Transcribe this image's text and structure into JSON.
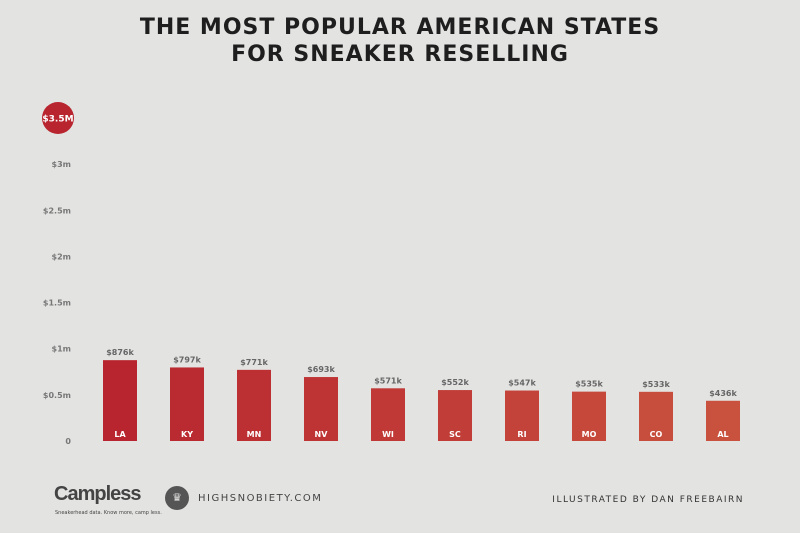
{
  "title_lines": [
    "THE MOST POPULAR AMERICAN STATES",
    "FOR SNEAKER RESELLING"
  ],
  "chart_data": {
    "type": "bar",
    "title": "THE MOST POPULAR AMERICAN STATES FOR SNEAKER RESELLING",
    "categories": [
      "LA",
      "KY",
      "MN",
      "NV",
      "WI",
      "SC",
      "RI",
      "MO",
      "CO",
      "AL"
    ],
    "values": [
      876000,
      797000,
      771000,
      693000,
      571000,
      552000,
      547000,
      535000,
      533000,
      436000
    ],
    "data_labels": [
      "$876k",
      "$797k",
      "$771k",
      "$693k",
      "$571k",
      "$552k",
      "$547k",
      "$535k",
      "$533k",
      "$436k"
    ],
    "ylim": [
      0,
      3500000
    ],
    "yticks": [
      0,
      500000,
      1000000,
      1500000,
      2000000,
      2500000,
      3000000
    ],
    "ytick_labels": [
      "0",
      "$0.5m",
      "$1m",
      "$1.5m",
      "$2m",
      "$2.5m",
      "$3m"
    ],
    "ymax_badge": "$3.5M",
    "grid": false,
    "colors": {
      "start": "#b8252f",
      "end": "#c9523f",
      "badge": "#b8252f"
    }
  },
  "footer": {
    "campless_logo": "Campless",
    "campless_tagline": "Sneakerhead data. Know more, camp less.",
    "highsnobiety": "HIGHSNOBIETY.COM",
    "credit": "ILLUSTRATED BY DAN FREEBAIRN"
  }
}
